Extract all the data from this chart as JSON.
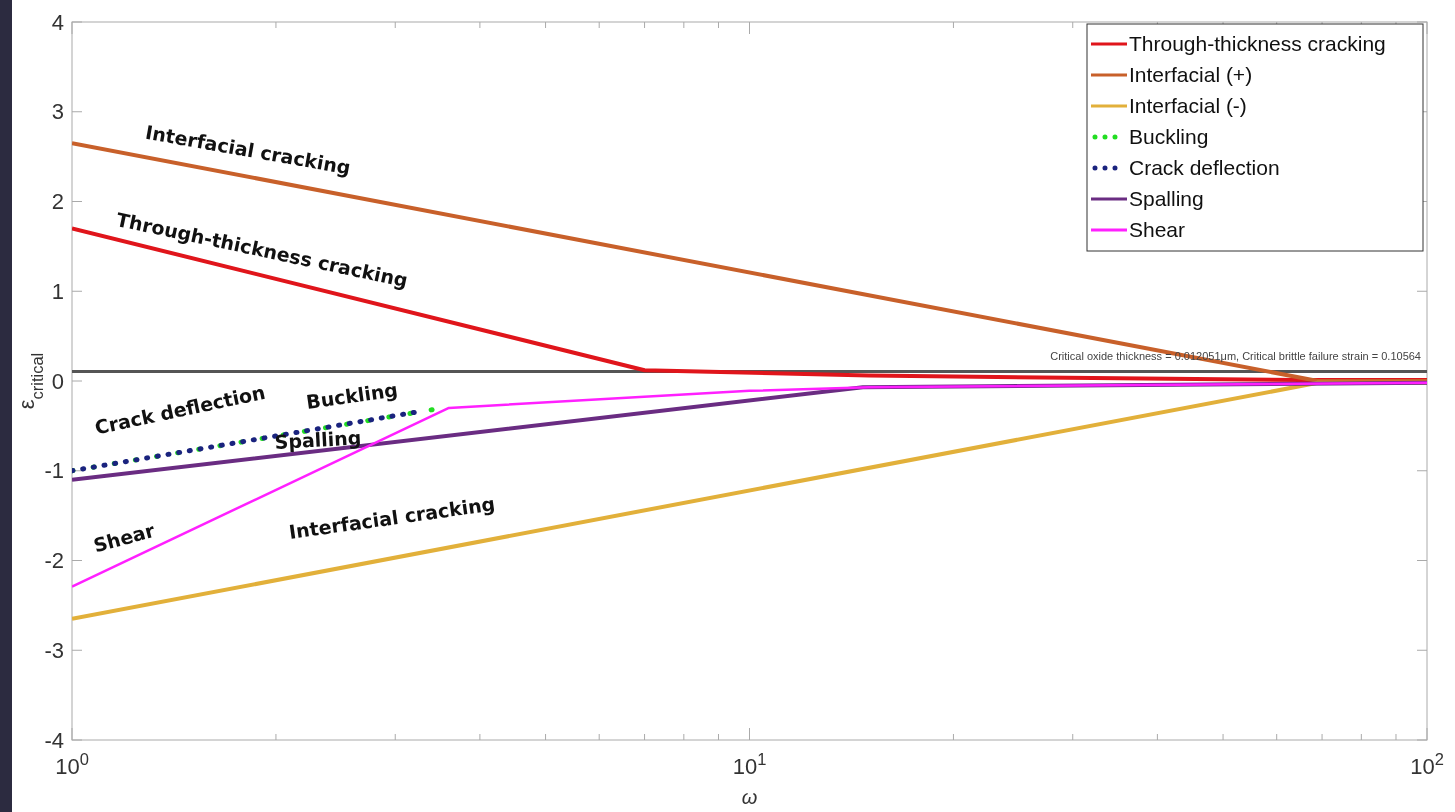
{
  "chart_data": {
    "type": "line",
    "xlabel": "ω",
    "ylabel": "ε$_{critical}$",
    "log": "x",
    "xlim": [
      1,
      100
    ],
    "xticks": [
      {
        "value": 1,
        "label": "10$^{0}$"
      },
      {
        "value": 10,
        "label": "10$^{1}$"
      },
      {
        "value": 100,
        "label": "10$^{2}$"
      }
    ],
    "ylim": [
      -4,
      4
    ],
    "yticks": [
      -4,
      -3,
      -2,
      -1,
      0,
      1,
      2,
      3,
      4
    ],
    "grid": false,
    "legend": "top right",
    "series": [
      {
        "name": "Through-thickness cracking",
        "color": "#e0151b",
        "x": [
          1,
          7,
          15,
          65,
          100
        ],
        "values": [
          1.7,
          0.12,
          0.06,
          0.01,
          0.01
        ]
      },
      {
        "name": "Interfacial (+)",
        "color": "#c8602a",
        "x": [
          1,
          69,
          100
        ],
        "values": [
          2.65,
          0.0,
          0.0
        ]
      },
      {
        "name": "Interfacial (-)",
        "color": "#e2b03a",
        "x": [
          1,
          69,
          100
        ],
        "values": [
          -2.65,
          -0.02,
          -0.02
        ]
      },
      {
        "name": "Buckling",
        "color": "#22dd22",
        "line_style": "dotted",
        "x": [
          1,
          3.4
        ],
        "values": [
          -1.0,
          -0.32
        ]
      },
      {
        "name": "Crack deflection",
        "color": "#1a237e",
        "line_style": "dotted",
        "x": [
          1,
          3.2
        ],
        "values": [
          -1.0,
          -0.35
        ]
      },
      {
        "name": "Spalling",
        "color": "#6a2c82",
        "x": [
          1,
          14.7,
          100
        ],
        "values": [
          -1.1,
          -0.07,
          -0.02
        ]
      },
      {
        "name": "Shear",
        "color": "#ff20ff",
        "x": [
          1,
          3.6,
          10,
          15,
          100
        ],
        "values": [
          -2.29,
          -0.3,
          -0.11,
          -0.07,
          -0.02
        ]
      }
    ],
    "ref_lines": [
      {
        "axis": "y",
        "value": 0.10564,
        "label": "Critical oxide thickness = 0.012051μm, Critical brittle failure strain = 0.10564",
        "color": "#555555"
      }
    ],
    "annotations": [
      "Interfacial cracking",
      "Through-thickness cracking",
      "Crack deflection",
      "Buckling",
      "Spalling",
      "Shear",
      "Interfacial cracking"
    ]
  }
}
